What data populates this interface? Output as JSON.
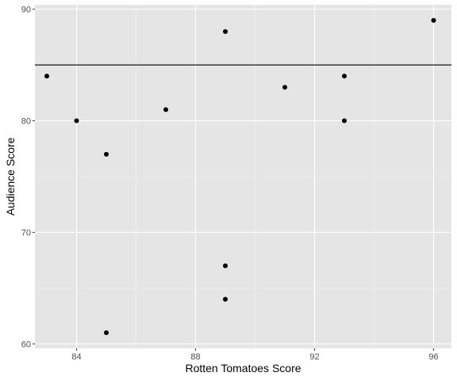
{
  "chart_data": {
    "type": "scatter",
    "title": "",
    "xlabel": "Rotten Tomatoes Score",
    "ylabel": "Audience Score",
    "xlim": [
      82.6,
      96.6
    ],
    "ylim": [
      59.6,
      90.4
    ],
    "x_ticks": [
      84,
      88,
      92,
      96
    ],
    "x_tick_labels": [
      "84",
      "88",
      "92",
      "96"
    ],
    "y_ticks": [
      60,
      70,
      80,
      90
    ],
    "y_tick_labels": [
      "60",
      "70",
      "80",
      "90"
    ],
    "grid": true,
    "legend": "none",
    "reference_line": {
      "orientation": "horizontal",
      "y": 85,
      "color": "#000000"
    },
    "series": [
      {
        "color": "#000000",
        "points": [
          {
            "x": 83,
            "y": 84
          },
          {
            "x": 84,
            "y": 80
          },
          {
            "x": 85,
            "y": 77
          },
          {
            "x": 85,
            "y": 61
          },
          {
            "x": 87,
            "y": 81
          },
          {
            "x": 89,
            "y": 88
          },
          {
            "x": 89,
            "y": 67
          },
          {
            "x": 89,
            "y": 64
          },
          {
            "x": 91,
            "y": 83
          },
          {
            "x": 93,
            "y": 84
          },
          {
            "x": 93,
            "y": 80
          },
          {
            "x": 96,
            "y": 89
          }
        ]
      }
    ],
    "colors": {
      "panel_background": "#e5e5e5",
      "grid_major": "#ffffff",
      "grid_minor": "#f2f2f2",
      "point": "#000000"
    }
  }
}
